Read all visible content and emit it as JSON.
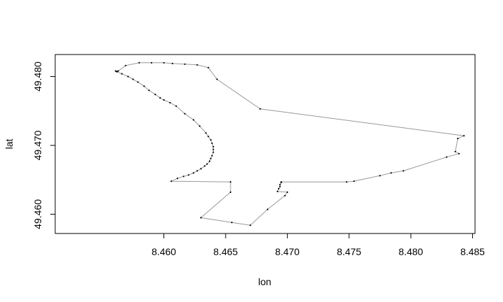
{
  "chart_data": {
    "type": "line",
    "title": "",
    "xlabel": "lon",
    "ylabel": "lat",
    "xlim": [
      8.4512,
      8.4852
    ],
    "ylim": [
      49.4572,
      49.4832
    ],
    "x_ticks": [
      8.46,
      8.465,
      8.47,
      8.475,
      8.48,
      8.485
    ],
    "x_tick_labels": [
      "8.460",
      "8.465",
      "8.470",
      "8.475",
      "8.480",
      "8.485"
    ],
    "y_ticks": [
      49.46,
      49.47,
      49.48
    ],
    "y_tick_labels": [
      "49.460",
      "49.470",
      "49.480"
    ],
    "grid": false,
    "line_color": "#999999",
    "point_color": "#000000",
    "series": [
      {
        "x": [
          8.4561,
          8.4563,
          8.4569,
          8.458,
          8.459,
          8.46,
          8.4607,
          8.4617,
          8.4627,
          8.4636,
          8.4643,
          8.4678,
          8.4843,
          8.4838,
          8.4836,
          8.4839,
          8.4829,
          8.4794,
          8.4784,
          8.4775,
          8.4754,
          8.4748,
          8.4695,
          8.4695,
          8.4694,
          8.4694,
          8.4693,
          8.4692,
          8.47,
          8.4698,
          8.4684,
          8.467,
          8.4655,
          8.463,
          8.4654,
          8.4654,
          8.4606,
          8.4611,
          8.4616,
          8.462,
          8.4624,
          8.4627,
          8.463,
          8.4633,
          8.4635,
          8.4637,
          8.4638,
          8.4639,
          8.464,
          8.464,
          8.464,
          8.4639,
          8.4638,
          8.4636,
          8.4634,
          8.4629,
          8.4624,
          8.4617,
          8.461,
          8.4605,
          8.46,
          8.4597,
          8.4593,
          8.4588,
          8.4584,
          8.4579,
          8.4575,
          8.4571,
          8.4566,
          8.4562,
          8.4561
        ],
        "y": [
          49.4808,
          49.4808,
          49.4816,
          49.482,
          49.482,
          49.482,
          49.4819,
          49.4818,
          49.4817,
          49.4813,
          49.4796,
          49.4753,
          49.4714,
          49.471,
          49.4691,
          49.4688,
          49.4683,
          49.4663,
          49.466,
          49.4656,
          49.4648,
          49.4647,
          49.4647,
          49.4646,
          49.4643,
          49.464,
          49.4637,
          49.4633,
          49.4632,
          49.4627,
          49.4607,
          49.4584,
          49.4588,
          49.4595,
          49.4632,
          49.4647,
          49.4648,
          49.4652,
          49.4655,
          49.4657,
          49.466,
          49.4663,
          49.4666,
          49.467,
          49.4673,
          49.4677,
          49.4681,
          49.4685,
          49.469,
          49.4694,
          49.4698,
          49.4703,
          49.4708,
          49.4713,
          49.4718,
          49.4728,
          49.4737,
          49.4746,
          49.4757,
          49.4762,
          49.4766,
          49.4769,
          49.4774,
          49.478,
          49.4786,
          49.4792,
          49.4796,
          49.48,
          49.4804,
          49.4807,
          49.4808
        ]
      }
    ]
  }
}
